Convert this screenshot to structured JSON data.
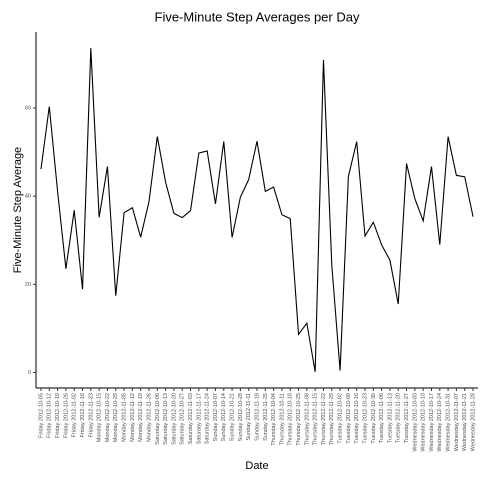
{
  "chart_data": {
    "type": "line",
    "title": "Five-Minute Step Averages per Day",
    "xlabel": "Date",
    "ylabel": "Five-Minute Step Average",
    "categories": [
      "Friday 2012-10-05",
      "Friday 2012-10-12",
      "Friday 2012-10-19",
      "Friday 2012-10-26",
      "Friday 2012-11-02",
      "Friday 2012-11-16",
      "Friday 2012-11-23",
      "Monday 2012-10-15",
      "Monday 2012-10-22",
      "Monday 2012-10-29",
      "Monday 2012-11-05",
      "Monday 2012-11-12",
      "Monday 2012-11-19",
      "Monday 2012-11-26",
      "Saturday 2012-10-06",
      "Saturday 2012-10-13",
      "Saturday 2012-10-20",
      "Saturday 2012-10-27",
      "Saturday 2012-11-03",
      "Saturday 2012-11-17",
      "Saturday 2012-11-24",
      "Sunday 2012-10-07",
      "Sunday 2012-10-14",
      "Sunday 2012-10-21",
      "Sunday 2012-10-28",
      "Sunday 2012-11-11",
      "Sunday 2012-11-18",
      "Sunday 2012-11-25",
      "Thursday 2012-10-04",
      "Thursday 2012-10-11",
      "Thursday 2012-10-18",
      "Thursday 2012-10-25",
      "Thursday 2012-11-08",
      "Thursday 2012-11-15",
      "Thursday 2012-11-22",
      "Thursday 2012-11-29",
      "Tuesday 2012-10-02",
      "Tuesday 2012-10-09",
      "Tuesday 2012-10-16",
      "Tuesday 2012-10-23",
      "Tuesday 2012-10-30",
      "Tuesday 2012-11-06",
      "Tuesday 2012-11-13",
      "Tuesday 2012-11-20",
      "Tuesday 2012-11-27",
      "Wednesday 2012-10-03",
      "Wednesday 2012-10-10",
      "Wednesday 2012-10-17",
      "Wednesday 2012-10-24",
      "Wednesday 2012-10-31",
      "Wednesday 2012-11-07",
      "Wednesday 2012-11-21",
      "Wednesday 2012-11-28"
    ],
    "values": [
      46.16,
      60.35,
      41.07,
      23.53,
      36.81,
      18.89,
      73.59,
      35.2,
      46.74,
      17.42,
      36.25,
      37.38,
      30.7,
      38.76,
      53.54,
      43.15,
      36.09,
      35.14,
      36.7,
      49.79,
      50.27,
      38.25,
      52.42,
      30.63,
      39.78,
      43.78,
      52.47,
      41.09,
      42.07,
      35.78,
      34.92,
      8.65,
      11.18,
      0.14,
      70.93,
      24.47,
      0.44,
      44.48,
      52.38,
      30.97,
      34.09,
      28.94,
      25.47,
      15.53,
      47.38,
      39.42,
      34.38,
      46.71,
      29.01,
      53.52,
      44.73,
      44.4,
      35.36
    ],
    "color": "#000000",
    "ylim": [
      -3.53,
      77.26
    ],
    "yticks": [
      0,
      20,
      40,
      60
    ]
  }
}
